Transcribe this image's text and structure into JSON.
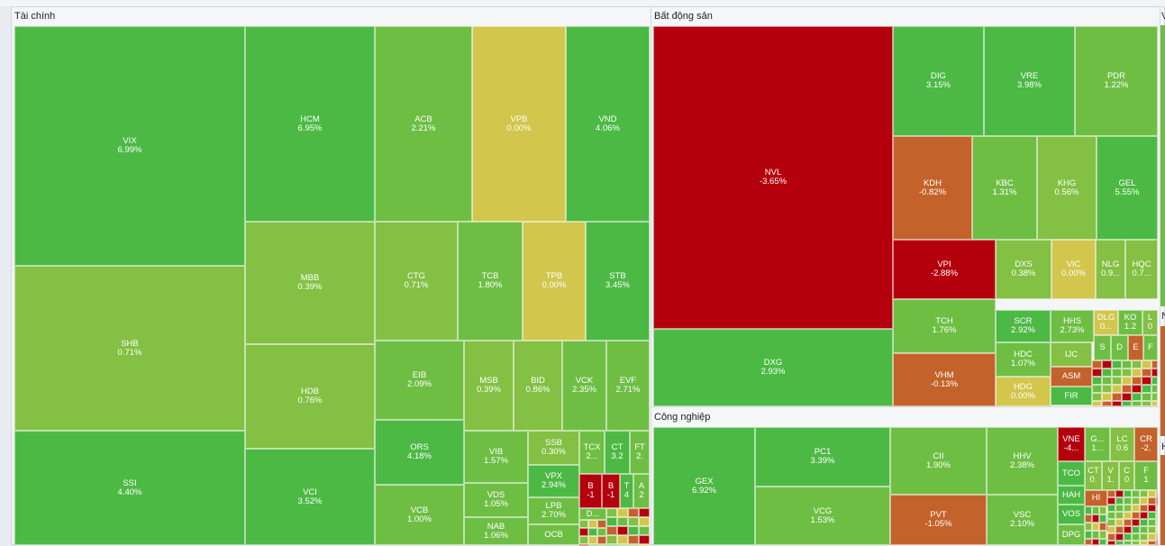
{
  "colors": {
    "strong_up": "#4cb944",
    "mid_up": "#6ebe44",
    "light_up": "#83c043",
    "flat": "#d2c64c",
    "mild_down": "#c4622b",
    "strong_down": "#b4000c"
  },
  "sectors": [
    {
      "name": "Tài chính",
      "key": "tai-chinh"
    },
    {
      "name": "Bất động sản",
      "key": "bat-dong-san"
    },
    {
      "name": "Công nghiệp",
      "key": "cong-nghiep"
    },
    {
      "name": "V",
      "key": "partial-v"
    },
    {
      "name": "N",
      "key": "partial-n"
    },
    {
      "name": "H",
      "key": "partial-h"
    }
  ],
  "chart_data": {
    "type": "heatmap",
    "tiles": [
      {
        "ticker": "VIX",
        "change": "6.99%",
        "value": 6.99,
        "sector": "Tài chính",
        "color": "#4cb944"
      },
      {
        "ticker": "SHB",
        "change": "0.71%",
        "value": 0.71,
        "sector": "Tài chính",
        "color": "#83c043"
      },
      {
        "ticker": "SSI",
        "change": "4.40%",
        "value": 4.4,
        "sector": "Tài chính",
        "color": "#4cb944"
      },
      {
        "ticker": "HCM",
        "change": "6.95%",
        "value": 6.95,
        "sector": "Tài chính",
        "color": "#4cb944"
      },
      {
        "ticker": "MBB",
        "change": "0.39%",
        "value": 0.39,
        "sector": "Tài chính",
        "color": "#83c043"
      },
      {
        "ticker": "HDB",
        "change": "0.76%",
        "value": 0.76,
        "sector": "Tài chính",
        "color": "#83c043"
      },
      {
        "ticker": "VCI",
        "change": "3.52%",
        "value": 3.52,
        "sector": "Tài chính",
        "color": "#4cb944"
      },
      {
        "ticker": "ACB",
        "change": "2.21%",
        "value": 2.21,
        "sector": "Tài chính",
        "color": "#6ebe44"
      },
      {
        "ticker": "VPB",
        "change": "0.00%",
        "value": 0.0,
        "sector": "Tài chính",
        "color": "#d2c64c"
      },
      {
        "ticker": "VND",
        "change": "4.06%",
        "value": 4.06,
        "sector": "Tài chính",
        "color": "#4cb944"
      },
      {
        "ticker": "CTG",
        "change": "0.71%",
        "value": 0.71,
        "sector": "Tài chính",
        "color": "#83c043"
      },
      {
        "ticker": "TCB",
        "change": "1.80%",
        "value": 1.8,
        "sector": "Tài chính",
        "color": "#6ebe44"
      },
      {
        "ticker": "TPB",
        "change": "0.00%",
        "value": 0.0,
        "sector": "Tài chính",
        "color": "#d2c64c"
      },
      {
        "ticker": "STB",
        "change": "3.45%",
        "value": 3.45,
        "sector": "Tài chính",
        "color": "#4cb944"
      },
      {
        "ticker": "EIB",
        "change": "2.09%",
        "value": 2.09,
        "sector": "Tài chính",
        "color": "#6ebe44"
      },
      {
        "ticker": "MSB",
        "change": "0.39%",
        "value": 0.39,
        "sector": "Tài chính",
        "color": "#83c043"
      },
      {
        "ticker": "BID",
        "change": "0.86%",
        "value": 0.86,
        "sector": "Tài chính",
        "color": "#83c043"
      },
      {
        "ticker": "VCK",
        "change": "2.35%",
        "value": 2.35,
        "sector": "Tài chính",
        "color": "#6ebe44"
      },
      {
        "ticker": "EVF",
        "change": "2.71%",
        "value": 2.71,
        "sector": "Tài chính",
        "color": "#6ebe44"
      },
      {
        "ticker": "ORS",
        "change": "4.18%",
        "value": 4.18,
        "sector": "Tài chính",
        "color": "#4cb944"
      },
      {
        "ticker": "VIB",
        "change": "1.57%",
        "value": 1.57,
        "sector": "Tài chính",
        "color": "#6ebe44"
      },
      {
        "ticker": "SSB",
        "change": "0.30%",
        "value": 0.3,
        "sector": "Tài chính",
        "color": "#83c043"
      },
      {
        "ticker": "TCX",
        "change": "2...",
        "value": null,
        "sector": "Tài chính",
        "color": "#6ebe44"
      },
      {
        "ticker": "CT",
        "change": "3.2",
        "value": 3.2,
        "sector": "Tài chính",
        "color": "#4cb944"
      },
      {
        "ticker": "FT",
        "change": "2.",
        "value": null,
        "sector": "Tài chính",
        "color": "#6ebe44"
      },
      {
        "ticker": "VPX",
        "change": "2.94%",
        "value": 2.94,
        "sector": "Tài chính",
        "color": "#4cb944"
      },
      {
        "ticker": "B",
        "change": "-1",
        "value": -1,
        "sector": "Tài chính",
        "color": "#b4000c"
      },
      {
        "ticker": "B",
        "change": "-1",
        "value": -1,
        "sector": "Tài chính",
        "color": "#b4000c"
      },
      {
        "ticker": "T",
        "change": "4",
        "value": 4,
        "sector": "Tài chính",
        "color": "#4cb944"
      },
      {
        "ticker": "A",
        "change": "2",
        "value": 2,
        "sector": "Tài chính",
        "color": "#6ebe44"
      },
      {
        "ticker": "VCB",
        "change": "1.00%",
        "value": 1.0,
        "sector": "Tài chính",
        "color": "#6ebe44"
      },
      {
        "ticker": "VDS",
        "change": "1.05%",
        "value": 1.05,
        "sector": "Tài chính",
        "color": "#6ebe44"
      },
      {
        "ticker": "LPB",
        "change": "2.70%",
        "value": 2.7,
        "sector": "Tài chính",
        "color": "#6ebe44"
      },
      {
        "ticker": "D...",
        "change": "",
        "value": null,
        "sector": "Tài chính",
        "color": "#6ebe44"
      },
      {
        "ticker": "NAB",
        "change": "1.06%",
        "value": 1.06,
        "sector": "Tài chính",
        "color": "#6ebe44"
      },
      {
        "ticker": "OCB",
        "change": "",
        "value": null,
        "sector": "Tài chính",
        "color": "#6ebe44"
      },
      {
        "ticker": "NVL",
        "change": "-3.65%",
        "value": -3.65,
        "sector": "Bất động sản",
        "color": "#b4000c"
      },
      {
        "ticker": "DXG",
        "change": "2.93%",
        "value": 2.93,
        "sector": "Bất động sản",
        "color": "#4cb944"
      },
      {
        "ticker": "DIG",
        "change": "3.15%",
        "value": 3.15,
        "sector": "Bất động sản",
        "color": "#4cb944"
      },
      {
        "ticker": "VRE",
        "change": "3.98%",
        "value": 3.98,
        "sector": "Bất động sản",
        "color": "#4cb944"
      },
      {
        "ticker": "PDR",
        "change": "1.22%",
        "value": 1.22,
        "sector": "Bất động sản",
        "color": "#6ebe44"
      },
      {
        "ticker": "KDH",
        "change": "-0.82%",
        "value": -0.82,
        "sector": "Bất động sản",
        "color": "#c4622b"
      },
      {
        "ticker": "KBC",
        "change": "1.31%",
        "value": 1.31,
        "sector": "Bất động sản",
        "color": "#6ebe44"
      },
      {
        "ticker": "KHG",
        "change": "0.56%",
        "value": 0.56,
        "sector": "Bất động sản",
        "color": "#83c043"
      },
      {
        "ticker": "GEL",
        "change": "5.55%",
        "value": 5.55,
        "sector": "Bất động sản",
        "color": "#4cb944"
      },
      {
        "ticker": "VPI",
        "change": "-2.88%",
        "value": -2.88,
        "sector": "Bất động sản",
        "color": "#b4000c"
      },
      {
        "ticker": "DXS",
        "change": "0.38%",
        "value": 0.38,
        "sector": "Bất động sản",
        "color": "#83c043"
      },
      {
        "ticker": "VIC",
        "change": "0.00%",
        "value": 0.0,
        "sector": "Bất động sản",
        "color": "#d2c64c"
      },
      {
        "ticker": "NLG",
        "change": "0.9...",
        "value": null,
        "sector": "Bất động sản",
        "color": "#83c043"
      },
      {
        "ticker": "HQC",
        "change": "0.7...",
        "value": null,
        "sector": "Bất động sản",
        "color": "#83c043"
      },
      {
        "ticker": "TCH",
        "change": "1.76%",
        "value": 1.76,
        "sector": "Bất động sản",
        "color": "#6ebe44"
      },
      {
        "ticker": "SCR",
        "change": "2.92%",
        "value": 2.92,
        "sector": "Bất động sản",
        "color": "#4cb944"
      },
      {
        "ticker": "HHS",
        "change": "2.73%",
        "value": 2.73,
        "sector": "Bất động sản",
        "color": "#6ebe44"
      },
      {
        "ticker": "DLG",
        "change": "0...",
        "value": null,
        "sector": "Bất động sản",
        "color": "#d2c64c"
      },
      {
        "ticker": "KO",
        "change": "1.2",
        "value": 1.2,
        "sector": "Bất động sản",
        "color": "#6ebe44"
      },
      {
        "ticker": "L",
        "change": "0",
        "value": 0,
        "sector": "Bất động sản",
        "color": "#83c043"
      },
      {
        "ticker": "VHM",
        "change": "-0.13%",
        "value": -0.13,
        "sector": "Bất động sản",
        "color": "#c4622b"
      },
      {
        "ticker": "HDC",
        "change": "1.07%",
        "value": 1.07,
        "sector": "Bất động sản",
        "color": "#6ebe44"
      },
      {
        "ticker": "IJC",
        "change": "",
        "value": null,
        "sector": "Bất động sản",
        "color": "#83c043"
      },
      {
        "ticker": "S",
        "change": "",
        "value": null,
        "sector": "Bất động sản",
        "color": "#6ebe44"
      },
      {
        "ticker": "D",
        "change": "",
        "value": null,
        "sector": "Bất động sản",
        "color": "#6ebe44"
      },
      {
        "ticker": "E",
        "change": "",
        "value": null,
        "sector": "Bất động sản",
        "color": "#c4622b"
      },
      {
        "ticker": "F",
        "change": "",
        "value": null,
        "sector": "Bất động sản",
        "color": "#6ebe44"
      },
      {
        "ticker": "ASM",
        "change": "",
        "value": null,
        "sector": "Bất động sản",
        "color": "#c4622b"
      },
      {
        "ticker": "HDG",
        "change": "0.00%",
        "value": 0.0,
        "sector": "Bất động sản",
        "color": "#d2c64c"
      },
      {
        "ticker": "FIR",
        "change": "",
        "value": null,
        "sector": "Bất động sản",
        "color": "#4cb944"
      },
      {
        "ticker": "GEX",
        "change": "6.92%",
        "value": 6.92,
        "sector": "Công nghiệp",
        "color": "#4cb944"
      },
      {
        "ticker": "PC1",
        "change": "3.39%",
        "value": 3.39,
        "sector": "Công nghiệp",
        "color": "#4cb944"
      },
      {
        "ticker": "VCG",
        "change": "1.53%",
        "value": 1.53,
        "sector": "Công nghiệp",
        "color": "#6ebe44"
      },
      {
        "ticker": "CII",
        "change": "1.90%",
        "value": 1.9,
        "sector": "Công nghiệp",
        "color": "#6ebe44"
      },
      {
        "ticker": "PVT",
        "change": "-1.05%",
        "value": -1.05,
        "sector": "Công nghiệp",
        "color": "#c4622b"
      },
      {
        "ticker": "HHV",
        "change": "2.38%",
        "value": 2.38,
        "sector": "Công nghiệp",
        "color": "#6ebe44"
      },
      {
        "ticker": "VSC",
        "change": "2.10%",
        "value": 2.1,
        "sector": "Công nghiệp",
        "color": "#6ebe44"
      },
      {
        "ticker": "VNE",
        "change": "-4...",
        "value": null,
        "sector": "Công nghiệp",
        "color": "#b4000c"
      },
      {
        "ticker": "G...",
        "change": "1...",
        "value": null,
        "sector": "Công nghiệp",
        "color": "#6ebe44"
      },
      {
        "ticker": "LC",
        "change": "0.6",
        "value": 0.6,
        "sector": "Công nghiệp",
        "color": "#83c043"
      },
      {
        "ticker": "CR",
        "change": "-2.",
        "value": null,
        "sector": "Công nghiệp",
        "color": "#c4622b"
      },
      {
        "ticker": "TCO",
        "change": "",
        "value": null,
        "sector": "Công nghiệp",
        "color": "#4cb944"
      },
      {
        "ticker": "CT",
        "change": "0.",
        "value": null,
        "sector": "Công nghiệp",
        "color": "#83c043"
      },
      {
        "ticker": "V",
        "change": "1.",
        "value": null,
        "sector": "Công nghiệp",
        "color": "#83c043"
      },
      {
        "ticker": "C",
        "change": "0",
        "value": 0,
        "sector": "Công nghiệp",
        "color": "#83c043"
      },
      {
        "ticker": "F",
        "change": "1",
        "value": 1,
        "sector": "Công nghiệp",
        "color": "#6ebe44"
      },
      {
        "ticker": "HAH",
        "change": "",
        "value": null,
        "sector": "Công nghiệp",
        "color": "#4cb944"
      },
      {
        "ticker": "HI",
        "change": "",
        "value": null,
        "sector": "Công nghiệp",
        "color": "#c4622b"
      },
      {
        "ticker": "VOS",
        "change": "",
        "value": null,
        "sector": "Công nghiệp",
        "color": "#4cb944"
      },
      {
        "ticker": "DPG",
        "change": "",
        "value": null,
        "sector": "Công nghiệp",
        "color": "#6ebe44"
      }
    ]
  }
}
